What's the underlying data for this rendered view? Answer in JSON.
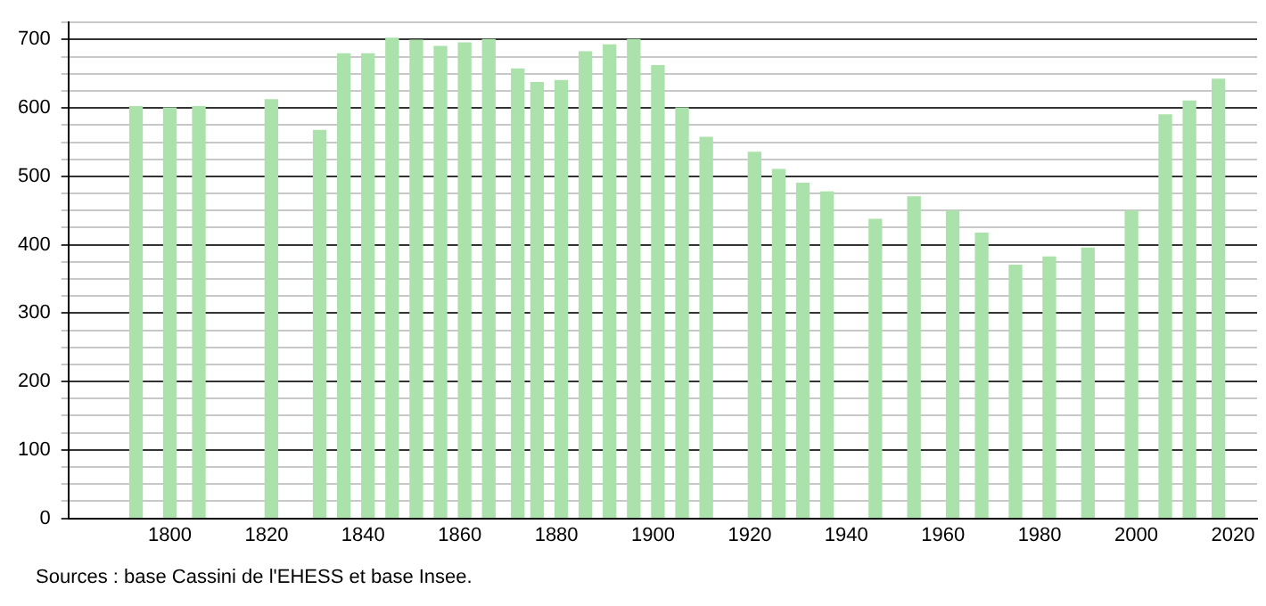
{
  "chart_data": {
    "type": "bar",
    "x": [
      1793,
      1800,
      1806,
      1821,
      1831,
      1836,
      1841,
      1846,
      1851,
      1856,
      1861,
      1866,
      1872,
      1876,
      1881,
      1886,
      1891,
      1896,
      1901,
      1906,
      1911,
      1921,
      1926,
      1931,
      1936,
      1946,
      1954,
      1962,
      1968,
      1975,
      1982,
      1990,
      1999,
      2006,
      2011,
      2017
    ],
    "values": [
      602,
      600,
      602,
      612,
      567,
      679,
      679,
      702,
      699,
      690,
      695,
      700,
      657,
      637,
      640,
      682,
      692,
      700,
      662,
      600,
      557,
      535,
      510,
      490,
      477,
      437,
      470,
      449,
      417,
      370,
      382,
      395,
      449,
      590,
      610,
      642
    ],
    "color": "#abe2ab",
    "xlim": [
      1779,
      2025
    ],
    "xticks": [
      1800,
      1820,
      1840,
      1860,
      1880,
      1900,
      1920,
      1940,
      1960,
      1980,
      2000,
      2020
    ],
    "ylim": [
      0,
      725
    ],
    "yticks": [
      0,
      {
        "value": 25,
        "label": null
      },
      {
        "value": 50,
        "label": null
      },
      {
        "value": 75,
        "label": null
      },
      100,
      {
        "value": 125,
        "label": null
      },
      {
        "value": 150,
        "label": null
      },
      {
        "value": 175,
        "label": null
      },
      200,
      {
        "value": 225,
        "label": null
      },
      {
        "value": 250,
        "label": null
      },
      {
        "value": 275,
        "label": null
      },
      300,
      {
        "value": 325,
        "label": null
      },
      {
        "value": 350,
        "label": null
      },
      {
        "value": 375,
        "label": null
      },
      400,
      {
        "value": 425,
        "label": null
      },
      {
        "value": 450,
        "label": null
      },
      {
        "value": 475,
        "label": null
      },
      500,
      {
        "value": 525,
        "label": null
      },
      {
        "value": 550,
        "label": null
      },
      {
        "value": 575,
        "label": null
      },
      600,
      {
        "value": 625,
        "label": null
      },
      {
        "value": 650,
        "label": null
      },
      {
        "value": 675,
        "label": null
      },
      700,
      {
        "value": 725,
        "label": null
      }
    ],
    "grid": "y",
    "annotations": [
      "Sources : base Cassini de l'EHESS et base Insee."
    ]
  }
}
